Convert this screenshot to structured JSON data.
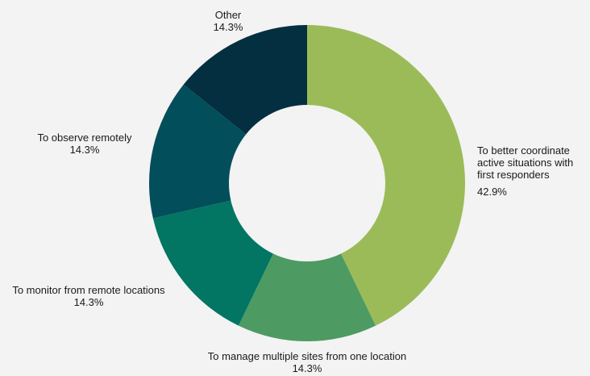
{
  "chart_data": {
    "type": "pie",
    "style": "donut",
    "categories": [
      "To better coordinate active situations with first responders",
      "To manage multiple sites from one location",
      "To monitor from remote locations",
      "To observe remotely",
      "Other"
    ],
    "values": [
      42.9,
      14.3,
      14.3,
      14.3,
      14.3
    ],
    "value_labels": [
      "42.9%",
      "14.3%",
      "14.3%",
      "14.3%",
      "14.3%"
    ],
    "label_lines": [
      [
        "To better coordinate",
        "active situations with",
        "first responders"
      ],
      [
        "To manage multiple sites from one location"
      ],
      [
        "To monitor from remote locations"
      ],
      [
        "To observe remotely"
      ],
      [
        "Other"
      ]
    ],
    "colors": [
      "#9bbb59",
      "#4d9b62",
      "#027563",
      "#034e5b",
      "#032f40"
    ],
    "legend": "none",
    "title": ""
  }
}
